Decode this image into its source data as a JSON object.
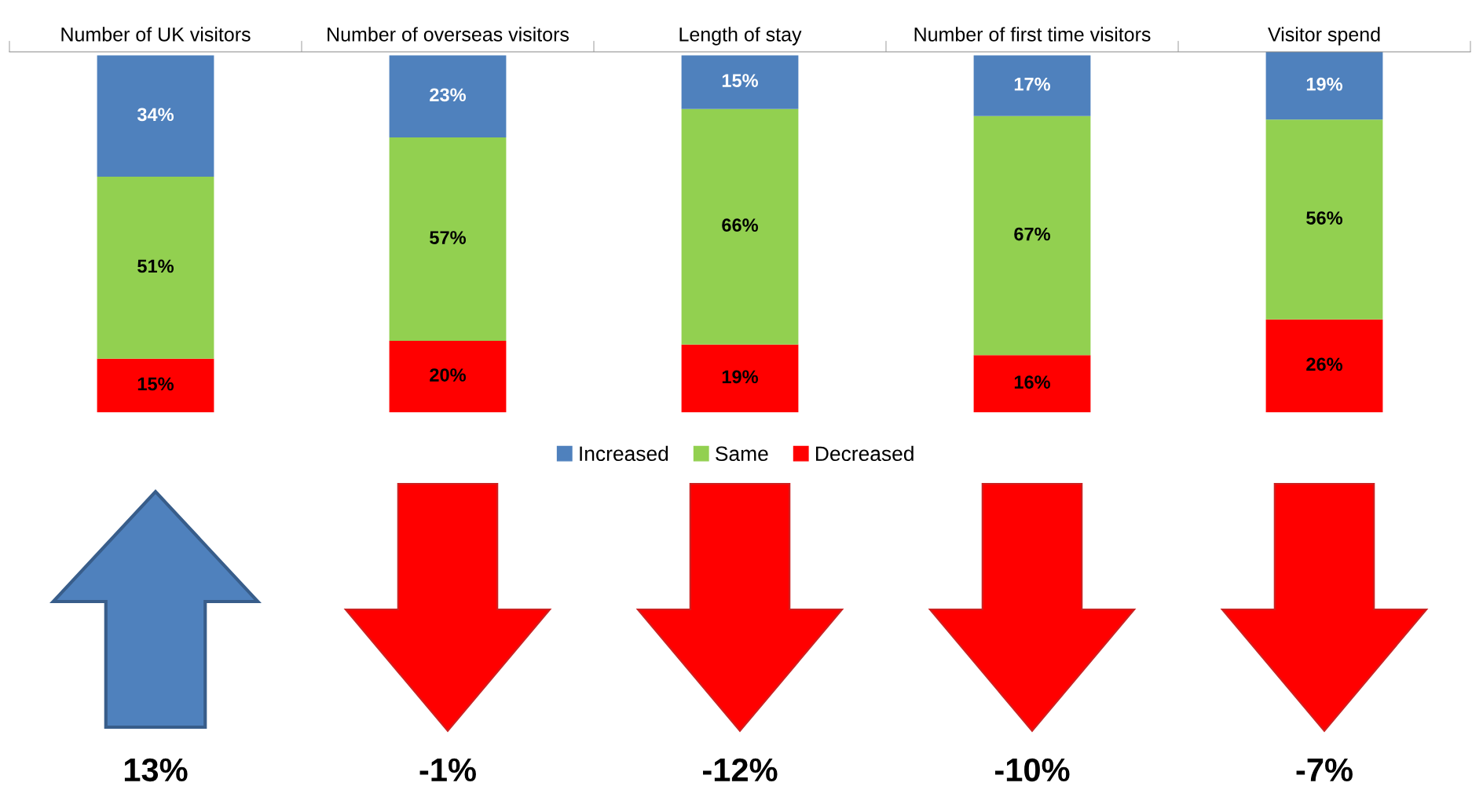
{
  "chart_data": {
    "type": "bar",
    "stacked": true,
    "categories": [
      "Number of UK visitors",
      "Number of overseas visitors",
      "Length of stay",
      "Number of first time visitors",
      "Visitor spend"
    ],
    "series": [
      {
        "name": "Decreased",
        "color": "#ff0000",
        "values": [
          15,
          20,
          19,
          16,
          26
        ],
        "value_labels": [
          "15%",
          "20%",
          "19%",
          "16%",
          "26%"
        ]
      },
      {
        "name": "Same",
        "color": "#92d050",
        "values": [
          51,
          57,
          66,
          67,
          56
        ],
        "value_labels": [
          "51%",
          "57%",
          "66%",
          "67%",
          "56%"
        ]
      },
      {
        "name": "Increased",
        "color": "#4f81bd",
        "values": [
          34,
          23,
          15,
          17,
          19
        ],
        "value_labels": [
          "34%",
          "23%",
          "15%",
          "17%",
          "19%"
        ]
      }
    ],
    "tick_labels": "x",
    "legend": "bottom",
    "annotations": [
      "13%",
      "-1%",
      "-12%",
      "-10%",
      "-7%"
    ]
  }
}
